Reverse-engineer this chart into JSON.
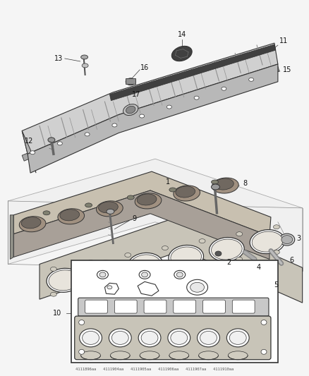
{
  "background_color": "#f5f5f5",
  "fig_width": 4.38,
  "fig_height": 5.33,
  "dpi": 100,
  "line_color": "#333333",
  "text_color": "#111111",
  "label_font_size": 7.0,
  "cover_top_color": "#c8c8c8",
  "cover_side_color": "#a0a0a0",
  "cover_rib_color": "#b0b0b0",
  "head_color": "#b8b0a0",
  "head_side_color": "#908880",
  "gasket_color": "#d0ccc0",
  "plane_color": "#e8e8e8",
  "inset_bg": "#ffffff"
}
